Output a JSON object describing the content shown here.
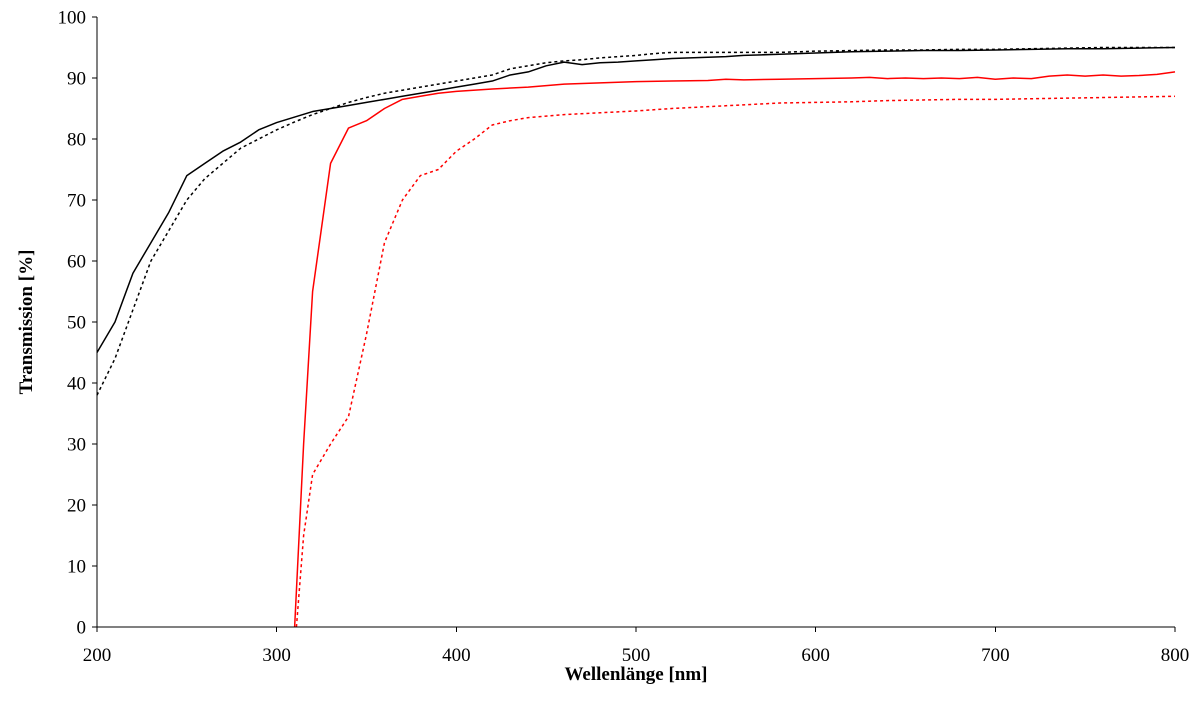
{
  "chart_data": {
    "type": "line",
    "xlabel": "Wellenlänge [nm]",
    "ylabel": "Transmission [%]",
    "xlim": [
      200,
      800
    ],
    "ylim": [
      0,
      100
    ],
    "xticks": [
      200,
      300,
      400,
      500,
      600,
      700,
      800
    ],
    "yticks": [
      0,
      10,
      20,
      30,
      40,
      50,
      60,
      70,
      80,
      90,
      100
    ],
    "grid": false,
    "series": [
      {
        "color": "#000000",
        "dash": "solid",
        "points": [
          [
            200,
            45
          ],
          [
            210,
            50
          ],
          [
            220,
            58
          ],
          [
            230,
            63
          ],
          [
            240,
            68
          ],
          [
            250,
            74
          ],
          [
            260,
            76
          ],
          [
            270,
            78
          ],
          [
            280,
            79.5
          ],
          [
            290,
            81.5
          ],
          [
            300,
            82.7
          ],
          [
            310,
            83.6
          ],
          [
            320,
            84.5
          ],
          [
            330,
            85
          ],
          [
            340,
            85.5
          ],
          [
            350,
            86
          ],
          [
            360,
            86.5
          ],
          [
            370,
            87
          ],
          [
            380,
            87.5
          ],
          [
            390,
            88
          ],
          [
            400,
            88.5
          ],
          [
            410,
            89
          ],
          [
            420,
            89.5
          ],
          [
            430,
            90.5
          ],
          [
            440,
            91
          ],
          [
            450,
            92
          ],
          [
            460,
            92.6
          ],
          [
            470,
            92.2
          ],
          [
            480,
            92.5
          ],
          [
            490,
            92.6
          ],
          [
            500,
            92.8
          ],
          [
            510,
            93
          ],
          [
            520,
            93.2
          ],
          [
            530,
            93.3
          ],
          [
            540,
            93.4
          ],
          [
            550,
            93.5
          ],
          [
            560,
            93.7
          ],
          [
            570,
            93.8
          ],
          [
            580,
            93.9
          ],
          [
            600,
            94.1
          ],
          [
            620,
            94.3
          ],
          [
            640,
            94.4
          ],
          [
            660,
            94.5
          ],
          [
            680,
            94.5
          ],
          [
            700,
            94.6
          ],
          [
            720,
            94.7
          ],
          [
            740,
            94.8
          ],
          [
            760,
            94.8
          ],
          [
            780,
            94.9
          ],
          [
            800,
            95
          ]
        ]
      },
      {
        "color": "#000000",
        "dash": "dotted",
        "points": [
          [
            200,
            38
          ],
          [
            210,
            44
          ],
          [
            220,
            52
          ],
          [
            230,
            60
          ],
          [
            240,
            65
          ],
          [
            250,
            70
          ],
          [
            260,
            73.5
          ],
          [
            270,
            76
          ],
          [
            280,
            78.5
          ],
          [
            290,
            80
          ],
          [
            300,
            81.5
          ],
          [
            310,
            82.8
          ],
          [
            320,
            84
          ],
          [
            330,
            85
          ],
          [
            340,
            86
          ],
          [
            350,
            86.8
          ],
          [
            360,
            87.5
          ],
          [
            370,
            88
          ],
          [
            380,
            88.5
          ],
          [
            390,
            89
          ],
          [
            400,
            89.5
          ],
          [
            410,
            90
          ],
          [
            420,
            90.5
          ],
          [
            430,
            91.5
          ],
          [
            440,
            92
          ],
          [
            450,
            92.5
          ],
          [
            460,
            92.8
          ],
          [
            470,
            93
          ],
          [
            480,
            93.3
          ],
          [
            490,
            93.5
          ],
          [
            500,
            93.7
          ],
          [
            510,
            94
          ],
          [
            520,
            94.2
          ],
          [
            540,
            94.2
          ],
          [
            560,
            94.2
          ],
          [
            580,
            94.2
          ],
          [
            600,
            94.4
          ],
          [
            620,
            94.5
          ],
          [
            640,
            94.6
          ],
          [
            660,
            94.6
          ],
          [
            680,
            94.7
          ],
          [
            700,
            94.7
          ],
          [
            720,
            94.8
          ],
          [
            740,
            94.9
          ],
          [
            760,
            95
          ],
          [
            780,
            95
          ],
          [
            800,
            95
          ]
        ]
      },
      {
        "color": "#ff0000",
        "dash": "solid",
        "points": [
          [
            310,
            0
          ],
          [
            315,
            30
          ],
          [
            320,
            55
          ],
          [
            330,
            76
          ],
          [
            340,
            81.8
          ],
          [
            350,
            83
          ],
          [
            360,
            85
          ],
          [
            370,
            86.5
          ],
          [
            380,
            87
          ],
          [
            390,
            87.5
          ],
          [
            400,
            87.8
          ],
          [
            420,
            88.2
          ],
          [
            440,
            88.5
          ],
          [
            460,
            89
          ],
          [
            480,
            89.2
          ],
          [
            500,
            89.4
          ],
          [
            520,
            89.5
          ],
          [
            540,
            89.6
          ],
          [
            550,
            89.8
          ],
          [
            560,
            89.7
          ],
          [
            580,
            89.8
          ],
          [
            600,
            89.9
          ],
          [
            620,
            90
          ],
          [
            630,
            90.1
          ],
          [
            640,
            89.9
          ],
          [
            650,
            90
          ],
          [
            660,
            89.9
          ],
          [
            670,
            90
          ],
          [
            680,
            89.9
          ],
          [
            690,
            90.1
          ],
          [
            700,
            89.8
          ],
          [
            710,
            90
          ],
          [
            720,
            89.9
          ],
          [
            730,
            90.3
          ],
          [
            740,
            90.5
          ],
          [
            750,
            90.3
          ],
          [
            760,
            90.5
          ],
          [
            770,
            90.3
          ],
          [
            780,
            90.4
          ],
          [
            790,
            90.6
          ],
          [
            800,
            91
          ]
        ]
      },
      {
        "color": "#ff0000",
        "dash": "dotted",
        "points": [
          [
            311,
            0
          ],
          [
            315,
            15
          ],
          [
            320,
            25
          ],
          [
            330,
            30
          ],
          [
            340,
            34.5
          ],
          [
            350,
            48
          ],
          [
            360,
            63
          ],
          [
            370,
            70
          ],
          [
            380,
            74
          ],
          [
            390,
            75
          ],
          [
            400,
            78
          ],
          [
            410,
            80
          ],
          [
            420,
            82.3
          ],
          [
            430,
            83
          ],
          [
            440,
            83.5
          ],
          [
            460,
            84
          ],
          [
            480,
            84.3
          ],
          [
            500,
            84.6
          ],
          [
            520,
            85
          ],
          [
            540,
            85.3
          ],
          [
            560,
            85.6
          ],
          [
            580,
            85.9
          ],
          [
            600,
            86
          ],
          [
            620,
            86.1
          ],
          [
            640,
            86.3
          ],
          [
            660,
            86.4
          ],
          [
            680,
            86.5
          ],
          [
            700,
            86.5
          ],
          [
            720,
            86.6
          ],
          [
            740,
            86.7
          ],
          [
            760,
            86.8
          ],
          [
            780,
            86.9
          ],
          [
            800,
            87
          ]
        ]
      }
    ]
  }
}
